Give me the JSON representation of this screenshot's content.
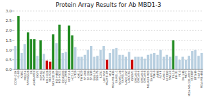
{
  "chart_data": {
    "type": "bar",
    "title": "Protein Array Results for Ab MBD1-3",
    "categories": [
      "CCRF-CEM",
      "HL-60",
      "K-562",
      "MOLT-4",
      "RPMI-8226",
      "SR",
      "A549/ATCC",
      "EKVX",
      "HOP-62",
      "HOP-92",
      "NCI-H226",
      "NCI-H23",
      "NCI-H322M",
      "NCI-H460",
      "NCI-H522",
      "COLO205",
      "HCC-2998",
      "HCT-116",
      "HCT-15",
      "HT29",
      "KM12",
      "SW-620",
      "SF-268",
      "SF-295",
      "SF-539",
      "SNB-19",
      "SNB-75",
      "U251",
      "LOX IMVI",
      "MALME-3M",
      "M14",
      "MDA-MB-435",
      "SK-MEL-2",
      "SK-MEL-28",
      "SK-MEL-5",
      "UACC-257",
      "UACC-62",
      "IGROV1",
      "OVCAR-3",
      "OVCAR-4",
      "OVCAR-5",
      "OVCAR-8",
      "NCI/ADR-RES",
      "SK-OV-3",
      "786-0",
      "A498",
      "ACHN",
      "CAKI-1",
      "RXF393",
      "SN12C",
      "TK-10",
      "UO-31",
      "PC-3",
      "DU-145",
      "MCF7",
      "MDA-MB-231/ATCC",
      "HS578T",
      "BT-549",
      "T-47D",
      "MDA-MB-468"
    ],
    "values": [
      1.2,
      2.75,
      0.85,
      1.3,
      1.9,
      1.55,
      1.55,
      0.7,
      1.5,
      0.8,
      0.45,
      0.4,
      1.8,
      1.35,
      2.3,
      0.85,
      0.9,
      2.25,
      1.75,
      1.15,
      0.65,
      0.65,
      0.75,
      1.0,
      1.2,
      0.65,
      0.7,
      1.0,
      1.2,
      0.5,
      0.85,
      1.05,
      1.1,
      0.75,
      0.75,
      0.65,
      0.9,
      0.5,
      0.65,
      0.65,
      0.65,
      0.55,
      0.75,
      0.8,
      0.85,
      0.75,
      1.0,
      0.65,
      0.75,
      0.65,
      1.5,
      0.7,
      0.5,
      0.65,
      0.5,
      0.7,
      0.95,
      1.0,
      0.7,
      0.85
    ],
    "colors": [
      "#b8cfe0",
      "#228B22",
      "#b8cfe0",
      "#b8cfe0",
      "#228B22",
      "#228B22",
      "#228B22",
      "#b8cfe0",
      "#228B22",
      "#b8cfe0",
      "#CC0000",
      "#CC0000",
      "#228B22",
      "#b8cfe0",
      "#228B22",
      "#b8cfe0",
      "#b8cfe0",
      "#228B22",
      "#228B22",
      "#b8cfe0",
      "#b8cfe0",
      "#b8cfe0",
      "#b8cfe0",
      "#b8cfe0",
      "#b8cfe0",
      "#b8cfe0",
      "#b8cfe0",
      "#b8cfe0",
      "#b8cfe0",
      "#CC0000",
      "#b8cfe0",
      "#b8cfe0",
      "#b8cfe0",
      "#b8cfe0",
      "#b8cfe0",
      "#b8cfe0",
      "#b8cfe0",
      "#CC0000",
      "#b8cfe0",
      "#b8cfe0",
      "#b8cfe0",
      "#b8cfe0",
      "#b8cfe0",
      "#b8cfe0",
      "#b8cfe0",
      "#b8cfe0",
      "#b8cfe0",
      "#b8cfe0",
      "#b8cfe0",
      "#b8cfe0",
      "#228B22",
      "#b8cfe0",
      "#b8cfe0",
      "#b8cfe0",
      "#b8cfe0",
      "#b8cfe0",
      "#b8cfe0",
      "#b8cfe0",
      "#b8cfe0",
      "#b8cfe0"
    ],
    "ylim": [
      0,
      3.0
    ],
    "yticks": [
      {
        "value": 0.0,
        "label": "0.0"
      },
      0.5,
      {
        "value": 1.0,
        "label": "1.0"
      },
      1.5,
      {
        "value": 2.0,
        "label": "2.0"
      },
      2.5,
      {
        "value": 3.0,
        "label": "3.0"
      }
    ],
    "grid": true
  }
}
